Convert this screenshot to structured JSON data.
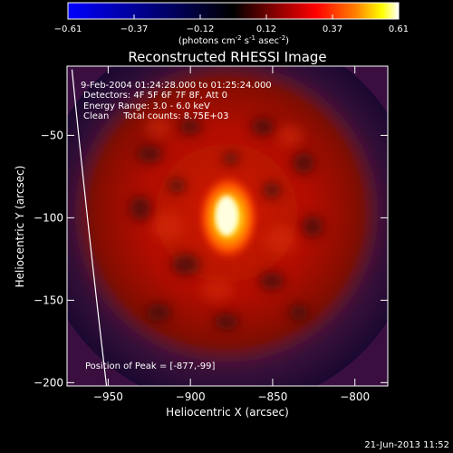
{
  "colorbar": {
    "ticks": [
      "-0.61",
      "-0.37",
      "-0.12",
      "0.12",
      "0.37",
      "0.61"
    ],
    "units_prefix": "(photons cm",
    "units_exp1": "-2",
    "units_mid1": " s",
    "units_exp2": "-1",
    "units_mid2": " asec",
    "units_exp3": "-2",
    "units_suffix": ")"
  },
  "chart_data": {
    "type": "heatmap",
    "title": "Reconstructed RHESSI Image",
    "xlabel": "Heliocentric X (arcsec)",
    "ylabel": "Heliocentric Y (arcsec)",
    "xlim": [
      -975,
      -780
    ],
    "ylim": [
      -202,
      -8
    ],
    "x_ticks": [
      -950,
      -900,
      -850,
      -800
    ],
    "y_ticks": [
      -50,
      -100,
      -150,
      -200
    ],
    "x_tick_labels": [
      "−950",
      "−900",
      "−850",
      "−800"
    ],
    "y_tick_labels": [
      "−50",
      "−100",
      "−150",
      "−200"
    ],
    "peak": {
      "x": -877,
      "y": -99,
      "value": 0.61
    },
    "annotations": [
      "9-Feb-2004 01:24:28.000 to 01:25:24.000",
      "Detectors: 4F 5F 6F 7F 8F, Att 0",
      "Energy Range: 3.0 - 6.0 keV",
      "Clean     Total counts: 8.75E+03"
    ],
    "peak_label": "Position of Peak = [-877,-99]",
    "limb_curve": [
      [
        -972,
        -10
      ],
      [
        -963,
        -100
      ],
      [
        -951,
        -202
      ]
    ],
    "colormap": [
      "#0000ff",
      "#000000",
      "#800000",
      "#ff0000",
      "#ff8000",
      "#ffff00",
      "#ffffff"
    ],
    "grid": false
  },
  "timestamp": "21-Jun-2013 11:52"
}
